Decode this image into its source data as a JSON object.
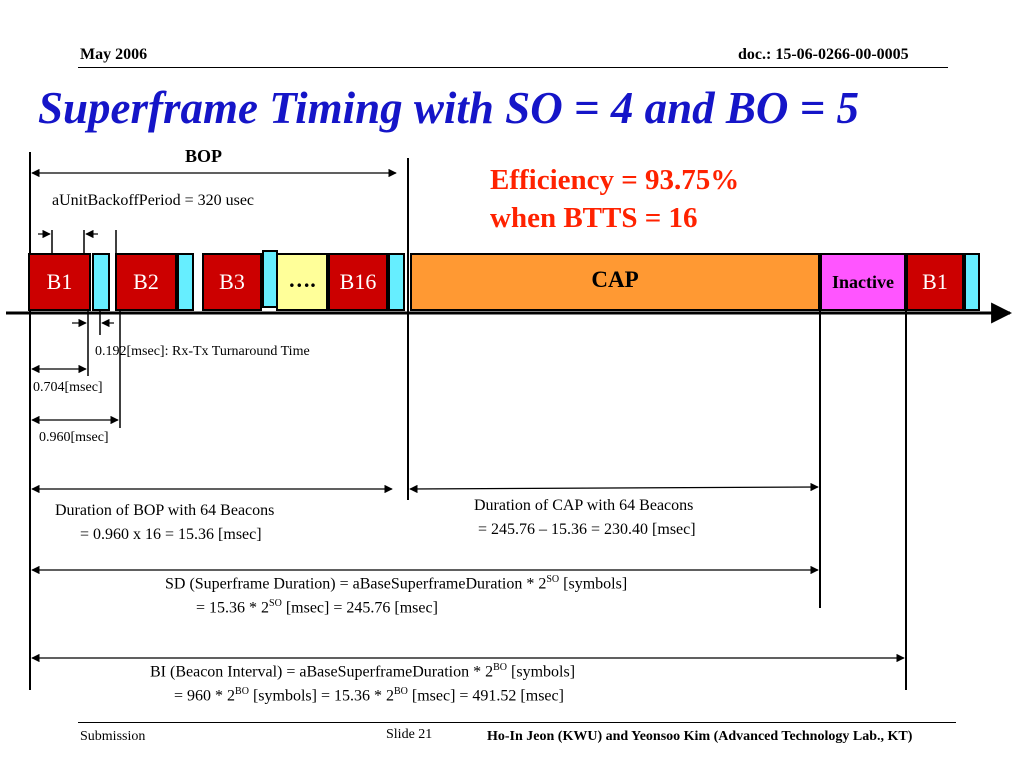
{
  "header": {
    "date": "May 2006",
    "doc": "doc.: 15-06-0266-00-0005"
  },
  "title": "Superframe Timing with SO = 4 and BO = 5",
  "bop_label": "BOP",
  "efficiency": {
    "line1": "Efficiency = 93.75%",
    "line2": "when BTTS = 16"
  },
  "backoff_label": "aUnitBackoffPeriod = 320 usec",
  "blocks": {
    "b1": "B1",
    "b2": "B2",
    "b3": "B3",
    "dots": "….",
    "b16": "B16",
    "cap": "CAP",
    "inactive": "Inactive",
    "b1_end": "B1"
  },
  "turnaround_label": "0.192[msec]: Rx-Tx Turnaround Time",
  "t1_label": "0.704[msec]",
  "t2_label": "0.960[msec]",
  "bop_duration": {
    "line1": "Duration of BOP with 64 Beacons",
    "line2": "= 0.960 x 16 = 15.36 [msec]"
  },
  "cap_duration": {
    "line1": "Duration of CAP with 64 Beacons",
    "line2": "= 245.76 – 15.36 = 230.40 [msec]"
  },
  "sd": {
    "a": "SD (Superframe Duration) =  aBaseSuperframeDuration * 2",
    "sup1": "SO",
    "b": " [symbols]",
    "c": "= 15.36 * 2",
    "sup2": "SO",
    "d": " [msec] = 245.76 [msec]"
  },
  "bi": {
    "a": "BI (Beacon Interval) = aBaseSuperframeDuration * 2",
    "sup1": "BO",
    "b": " [symbols]",
    "c": "= 960 * 2",
    "sup2": "BO",
    "d": " [symbols] = 15.36 * 2",
    "sup3": "BO",
    "e": " [msec] = 491.52 [msec]"
  },
  "footer": {
    "left": "Submission",
    "center": "Slide 21",
    "right": "Ho-In Jeon (KWU) and Yeonsoo Kim (Advanced Technology Lab., KT)"
  },
  "colors": {
    "title": "#1515c8",
    "efficiency": "#ff2200",
    "beacon": "#cc0000",
    "cap": "#ff9933",
    "inactive": "#ff55ff",
    "gap": "#66eeff",
    "dots_box": "#ffff99"
  }
}
